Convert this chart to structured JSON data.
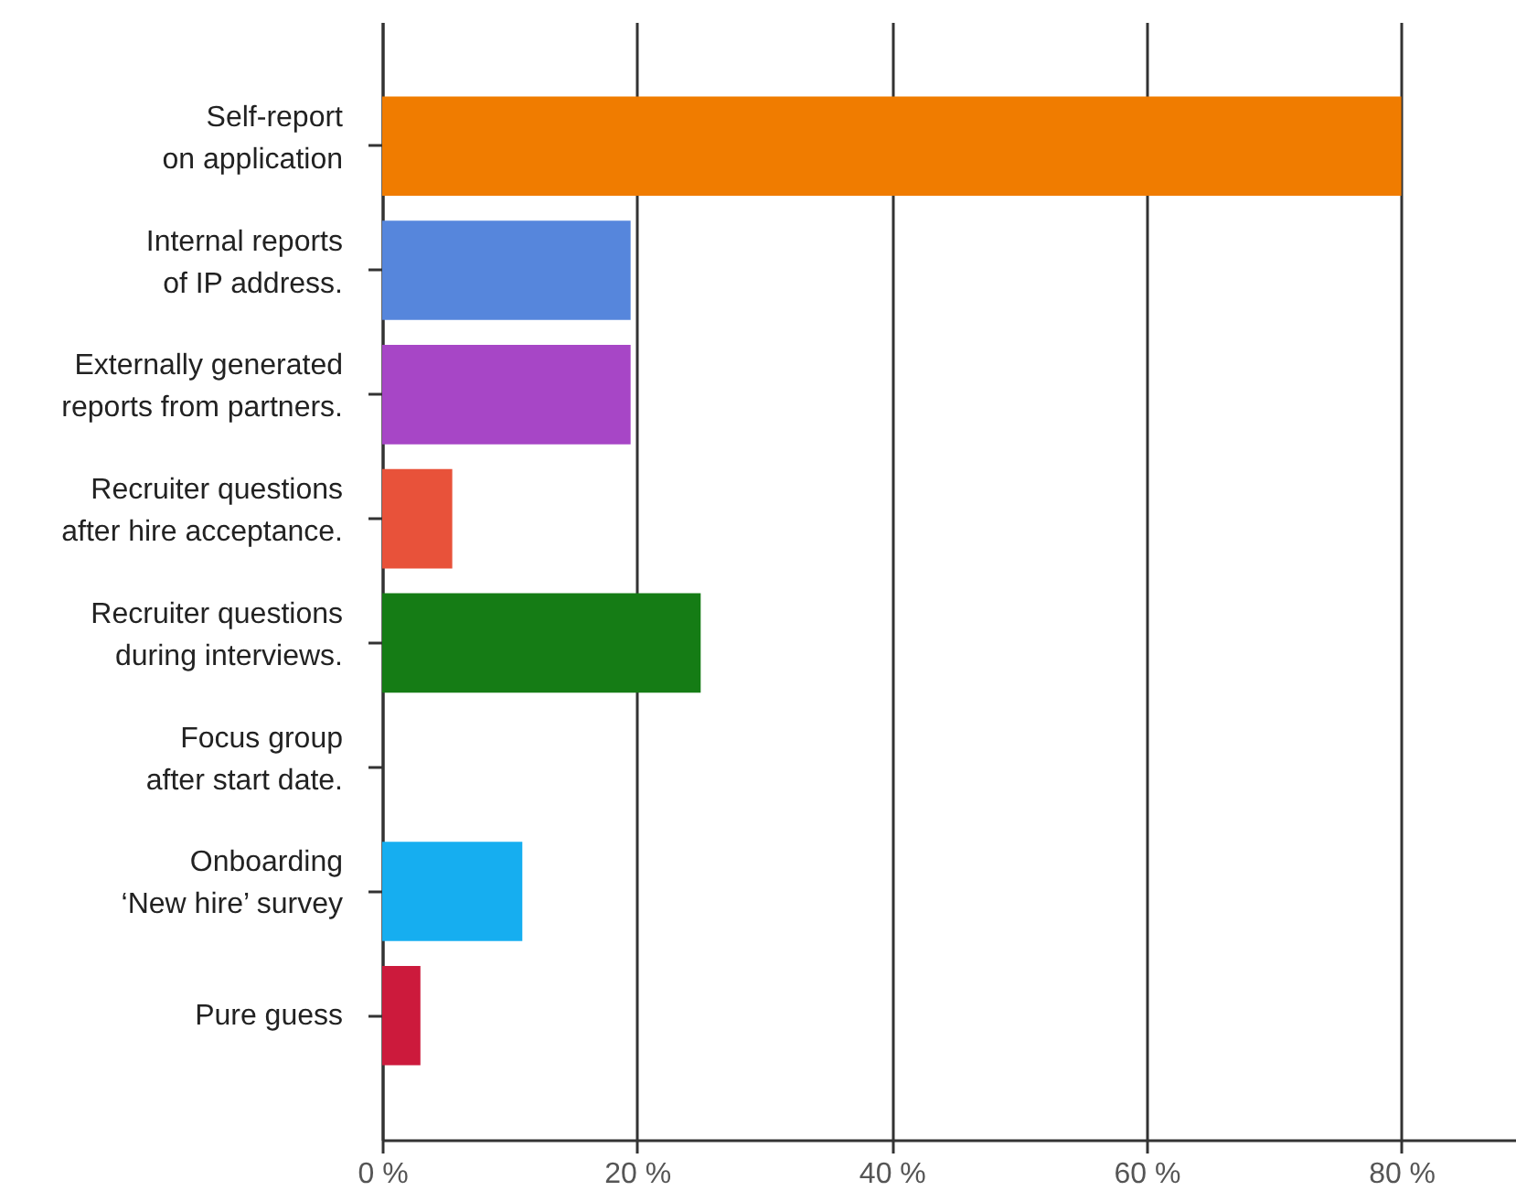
{
  "chart_data": {
    "type": "bar",
    "orientation": "horizontal",
    "categories": [
      "Self-report\non application",
      "Internal reports\nof IP address.",
      "Externally generated\nreports from partners.",
      "Recruiter questions\nafter hire acceptance.",
      "Recruiter questions\nduring interviews.",
      "Focus group\nafter start date.",
      "Onboarding\n‘New hire’ survey",
      "Pure guess"
    ],
    "values": [
      80,
      19.5,
      19.5,
      5.5,
      25,
      0,
      11,
      3
    ],
    "colors": [
      "#f07c00",
      "#5686dc",
      "#a746c6",
      "#e8523a",
      "#157c15",
      null,
      "#16aef0",
      "#cc1a3c"
    ],
    "xlim": [
      0,
      89
    ],
    "xticks": [
      {
        "value": 0,
        "label": "0 %"
      },
      {
        "value": 20,
        "label": "20 %"
      },
      {
        "value": 40,
        "label": "40 %"
      },
      {
        "value": 60,
        "label": "60 %"
      },
      {
        "value": 80,
        "label": "80 %"
      }
    ],
    "grid": "x"
  }
}
